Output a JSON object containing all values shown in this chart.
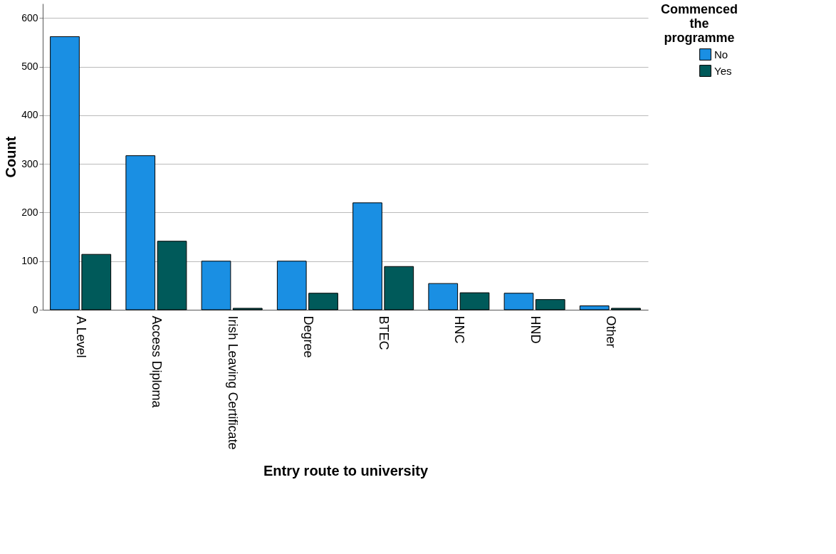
{
  "chart_data": {
    "type": "bar",
    "xlabel": "Entry route to university",
    "ylabel": "Count",
    "legend_title": "Commenced the programme",
    "categories": [
      "A Level",
      "Access Diploma",
      "Irish Leaving Certificate",
      "Degree",
      "BTEC",
      "HNC",
      "HND",
      "Other"
    ],
    "series": [
      {
        "name": "No",
        "color": "#1a8fe3",
        "values": [
          562,
          317,
          100,
          100,
          220,
          54,
          34,
          8
        ]
      },
      {
        "name": "Yes",
        "color": "#005a5a",
        "values": [
          114,
          141,
          3,
          34,
          89,
          35,
          21,
          3
        ]
      }
    ],
    "ylim": [
      0,
      630
    ],
    "yticks": [
      0,
      100,
      200,
      300,
      400,
      500,
      600
    ],
    "grid": "y",
    "legend": "top right"
  }
}
